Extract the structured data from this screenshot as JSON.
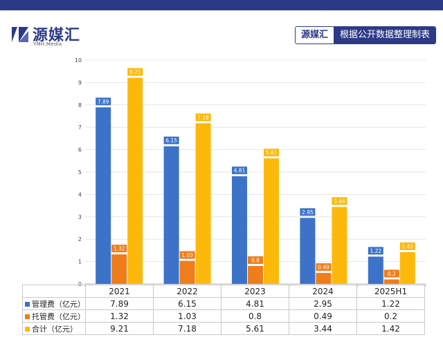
{
  "brand": {
    "logo_text": "源媒汇",
    "logo_sub": "YMH.Media",
    "source_brand": "源媒汇",
    "source_text": "根据公开数据整理制表"
  },
  "chart_data": {
    "type": "bar",
    "categories": [
      "2021",
      "2022",
      "2023",
      "2024",
      "2025H1"
    ],
    "series": [
      {
        "name": "管理费（亿元）",
        "color": "#3c73c9",
        "values": [
          7.89,
          6.15,
          4.81,
          2.95,
          1.22
        ]
      },
      {
        "name": "托管费（亿元）",
        "color": "#ef7d1b",
        "values": [
          1.32,
          1.03,
          0.8,
          0.49,
          0.2
        ]
      },
      {
        "name": "合计（亿元）",
        "color": "#fdb90b",
        "values": [
          9.21,
          7.18,
          5.61,
          3.44,
          1.42
        ]
      }
    ],
    "ylim": [
      0,
      10
    ],
    "yticks": [
      "0",
      "1",
      "2",
      "3",
      "4",
      "5",
      "6",
      "7",
      "8",
      "9",
      "10"
    ],
    "grid": true,
    "legend": "data table below chart",
    "title": "",
    "xlabel": "",
    "ylabel": ""
  }
}
